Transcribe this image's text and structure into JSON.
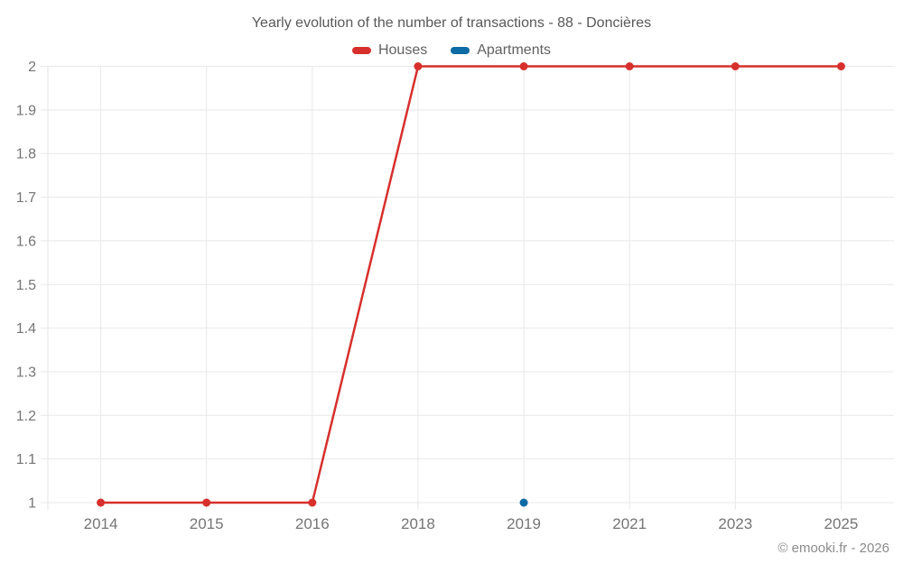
{
  "chart_data": {
    "type": "line",
    "title": "Yearly evolution of the number of transactions - 88 - Doncières",
    "categories": [
      "2014",
      "2015",
      "2016",
      "2018",
      "2019",
      "2021",
      "2023",
      "2025"
    ],
    "series": [
      {
        "name": "Houses",
        "color": "#d7302c",
        "show_line": true,
        "values": [
          1,
          1,
          1,
          2,
          2,
          2,
          2,
          2
        ]
      },
      {
        "name": "Apartments",
        "color": "#0d6ba6",
        "show_line": false,
        "values": [
          null,
          null,
          null,
          null,
          1,
          null,
          null,
          null
        ]
      }
    ],
    "ylim": [
      1,
      2
    ],
    "y_ticks": [
      {
        "value": 1,
        "label": "1"
      },
      {
        "value": 1.1,
        "label": "1.1"
      },
      {
        "value": 1.2,
        "label": "1.2"
      },
      {
        "value": 1.3,
        "label": "1.3"
      },
      {
        "value": 1.4,
        "label": "1.4"
      },
      {
        "value": 1.5,
        "label": "1.5"
      },
      {
        "value": 1.6,
        "label": "1.6"
      },
      {
        "value": 1.7,
        "label": "1.7"
      },
      {
        "value": 1.8,
        "label": "1.8"
      },
      {
        "value": 1.9,
        "label": "1.9"
      },
      {
        "value": 2,
        "label": "2"
      }
    ],
    "grid": "on",
    "legend_position": "top",
    "grid_color": "#e8e8e8",
    "axis_line_color": "#e3e3e3",
    "label_color": "#757575",
    "title_color": "#595959"
  },
  "footer": {
    "copyright": "© emooki.fr - 2026"
  }
}
